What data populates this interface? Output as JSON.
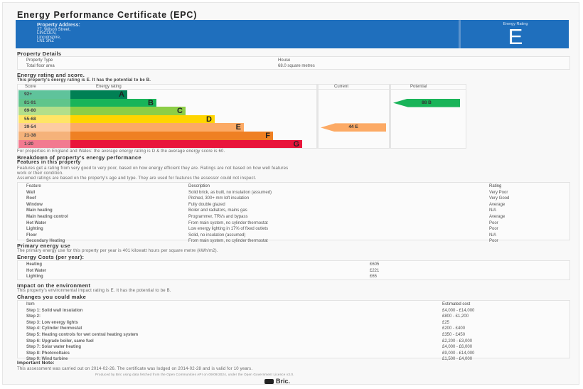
{
  "title": "Energy Performance Certificate (EPC)",
  "banner": {
    "address_label": "Property Address:",
    "address_lines": [
      "27, Wilson Street,",
      "LINCOLN,",
      "Lincolnshire,",
      "LN1 3NZ"
    ],
    "rating_label": "Energy Rating",
    "rating": "E",
    "color": "#1f6fbd"
  },
  "property_details": {
    "heading": "Property Details",
    "rows": [
      {
        "label": "Property Type",
        "value": "House"
      },
      {
        "label": "Total floor area",
        "value": "68.0 square metres"
      }
    ]
  },
  "energy_rating": {
    "heading": "Energy rating and score.",
    "summary": "This property's energy rating is E. It has the potential to be B.",
    "col_score": "Score",
    "col_rating": "Energy rating",
    "col_current": "Current",
    "col_potential": "Potential",
    "bands": [
      {
        "score": "92+",
        "letter": "A",
        "color": "#008054"
      },
      {
        "score": "81-91",
        "letter": "B",
        "color": "#19b459"
      },
      {
        "score": "69-80",
        "letter": "C",
        "color": "#8dce46"
      },
      {
        "score": "55-68",
        "letter": "D",
        "color": "#ffd500"
      },
      {
        "score": "39-54",
        "letter": "E",
        "color": "#fcaa65"
      },
      {
        "score": "21-38",
        "letter": "F",
        "color": "#ef8023"
      },
      {
        "score": "1-20",
        "letter": "G",
        "color": "#e9153b"
      }
    ],
    "current": {
      "score": 44,
      "letter": "E",
      "label": "44  E"
    },
    "potential": {
      "score": 88,
      "letter": "B",
      "label": "88  B"
    },
    "footnote": "For properties in England and Wales: the average energy rating is D & the average energy score is 60."
  },
  "breakdown": {
    "heading": "Breakdown of property's energy performance",
    "features_heading": "Features in this property",
    "intro": "Features get a rating from very good to very poor, based on how energy efficient they are. Ratings are not based on how well features",
    "intro2": "work or their condition.",
    "assumed": "Assumed ratings are based on the property's age and type. They are used for features the assessor could not inspect.",
    "columns": [
      "Feature",
      "Description",
      "Rating"
    ],
    "rows": [
      [
        "Wall",
        "Solid brick, as built, no insulation (assumed)",
        "Very Poor"
      ],
      [
        "Roof",
        "Pitched, 300+ mm loft insulation",
        "Very Good"
      ],
      [
        "Window",
        "Fully double glazed",
        "Average"
      ],
      [
        "Main heating",
        "Boiler and radiators, mains gas",
        "N/A"
      ],
      [
        "Main heating control",
        "Programmer, TRVs and bypass",
        "Average"
      ],
      [
        "Hot Water",
        "From main system, no cylinder thermostat",
        "Poor"
      ],
      [
        "Lighting",
        "Low energy lighting in 17% of fixed outlets",
        "Poor"
      ],
      [
        "Floor",
        "Solid, no insulation (assumed)",
        "N/A"
      ],
      [
        "Secondary Heating",
        "From main system, no cylinder thermostat",
        "Poor"
      ]
    ]
  },
  "primary_energy": {
    "heading": "Primary energy use",
    "text": "The primary energy use for this property per year is 401 kilowatt hours per square metre (kWh/m2)."
  },
  "energy_costs": {
    "heading": "Energy Costs (per year):",
    "rows": [
      [
        "Heating",
        "£605"
      ],
      [
        "Hot Water",
        "£221"
      ],
      [
        "Lighting",
        "£65"
      ]
    ]
  },
  "environment": {
    "heading": "Impact on the environment",
    "text": "This property's environmental impact rating is E. It has the potential to be B."
  },
  "changes": {
    "heading": "Changes you could make",
    "columns": [
      "Item",
      "Estimated cost"
    ],
    "rows": [
      [
        "Step 1: Solid wall insulation",
        "£4,000 - £14,000"
      ],
      [
        "Step 2:",
        "£800 - £1,200"
      ],
      [
        "Step 3: Low energy lights",
        "£25"
      ],
      [
        "Step 4: Cylinder thermostat",
        "£200 - £400"
      ],
      [
        "Step 5: Heating controls for wet central heating system",
        "£350 - £450"
      ],
      [
        "Step 6: Upgrade boiler, same fuel",
        "£2,200 - £3,000"
      ],
      [
        "Step 7: Solar water heating",
        "£4,000 - £6,000"
      ],
      [
        "Step 8: Photovoltaics",
        "£9,000 - £14,000"
      ],
      [
        "Step 9: Wind turbine",
        "£1,500 - £4,000"
      ]
    ]
  },
  "note": {
    "heading": "Important Note:",
    "text": "This assessment was carried out on 2014-02-26. The certificate was lodged on 2014-02-28 and is valid for 10 years.",
    "produced": "Produced by Bric using data fetched from the Open Communities API on 09/09/2024, under the Open Government Licence v3.0."
  },
  "logo": {
    "text": "Bric."
  }
}
